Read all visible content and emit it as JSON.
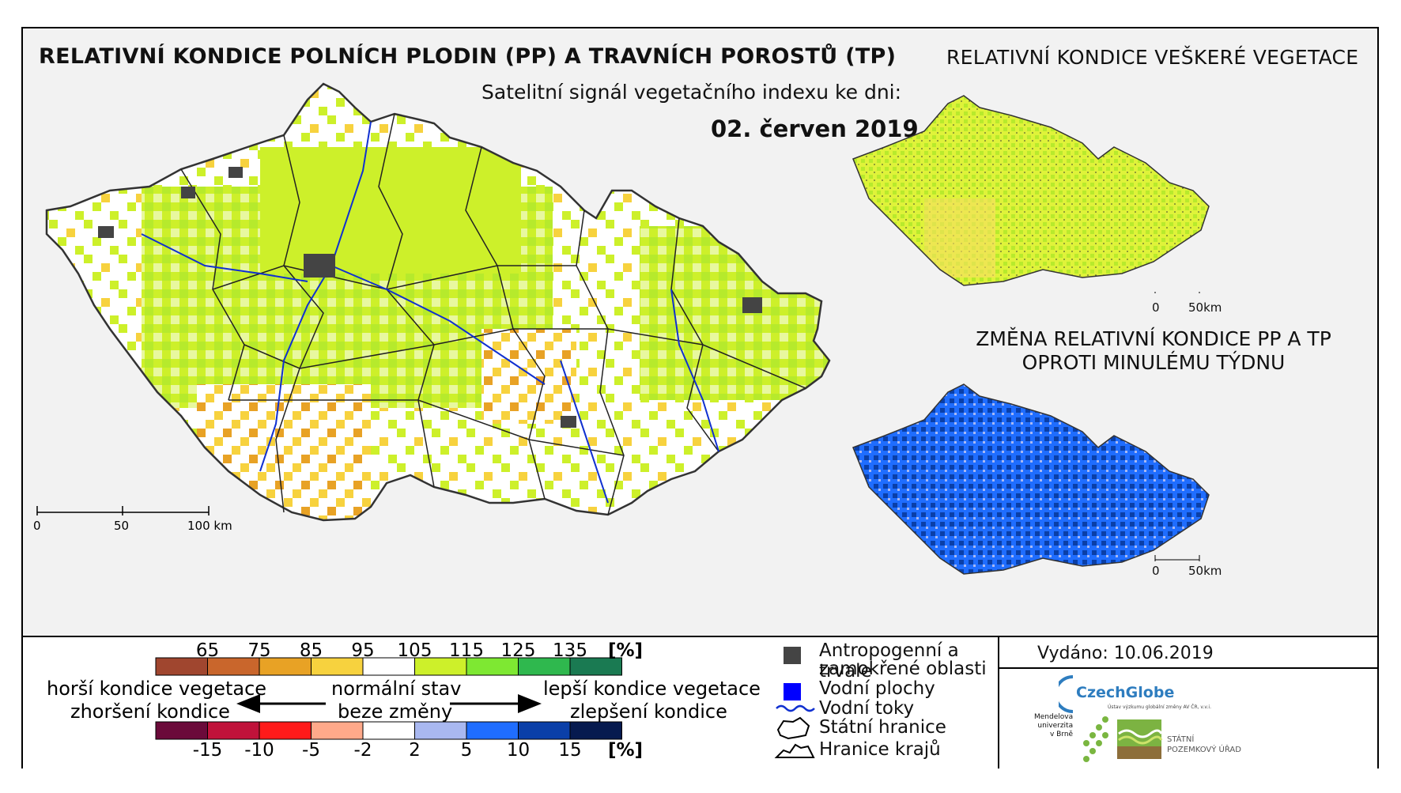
{
  "titles": {
    "main": "RELATIVNÍ KONDICE POLNÍCH PLODIN (PP) A TRAVNÍCH POROSTŮ (TP)",
    "subtitle": "Satelitní signál vegetačního indexu ke dni:",
    "date": "02. červen 2019",
    "right_top": "RELATIVNÍ KONDICE VEŠKERÉ VEGETACE",
    "right_change_line1": "ZMĚNA RELATIVNÍ KONDICE PP A TP",
    "right_change_line2": "OPROTI MINULÉMU TÝDNU"
  },
  "scalebars": {
    "main": [
      "0",
      "50",
      "100 km"
    ],
    "small_top": [
      "0",
      "50km"
    ],
    "small_bottom": [
      "0",
      "50km"
    ]
  },
  "legend_condition": {
    "ticks": [
      "65",
      "75",
      "85",
      "95",
      "105",
      "115",
      "125",
      "135"
    ],
    "unit": "[%]",
    "colors": [
      "#a0462f",
      "#c9662c",
      "#e8a225",
      "#f7d23e",
      "#ffffff",
      "#cdf02a",
      "#7ee832",
      "#2fb84e",
      "#1a7a52"
    ]
  },
  "legend_change": {
    "ticks": [
      "-15",
      "-10",
      "-5",
      "-2",
      "2",
      "5",
      "10",
      "15"
    ],
    "unit": "[%]",
    "colors": [
      "#6b0a3a",
      "#c0123a",
      "#ff1a1a",
      "#ffa98a",
      "#ffffff",
      "#a9b8f0",
      "#1f6dff",
      "#0a3fa8",
      "#061a4f"
    ]
  },
  "legend_text": {
    "worse_1": "horší kondice vegetace",
    "worse_2": "zhoršení kondice",
    "normal_1": "normální stav",
    "normal_2": "beze změny",
    "better_1": "lepší kondice vegetace",
    "better_2": "zlepšení kondice"
  },
  "map_legend": {
    "items": [
      {
        "label": "Antropogenní a trvale",
        "label2": "zamokřené oblasti",
        "icon": "dark-gray-square",
        "color": "#444444"
      },
      {
        "label": "Vodní plochy",
        "icon": "blue-square",
        "color": "#0000ff"
      },
      {
        "label": "Vodní toky",
        "icon": "blue-wave-line",
        "color": "#1030d0"
      },
      {
        "label": "Státní hranice",
        "icon": "border-outline-icon",
        "color": "#000000"
      },
      {
        "label": "Hranice krajů",
        "icon": "region-outline-icon",
        "color": "#000000"
      }
    ]
  },
  "issued": "Vydáno: 10.06.2019",
  "logos": {
    "czechglobe": "CzechGlobe",
    "czechglobe_sub": "Ústav výzkumu globální změny AV ČR, v.v.i.",
    "mendel_1": "Mendelova",
    "mendel_2": "univerzita",
    "mendel_3": "v Brně",
    "spu_1": "STÁTNÍ",
    "spu_2": "POZEMKOVÝ ÚŘAD"
  }
}
